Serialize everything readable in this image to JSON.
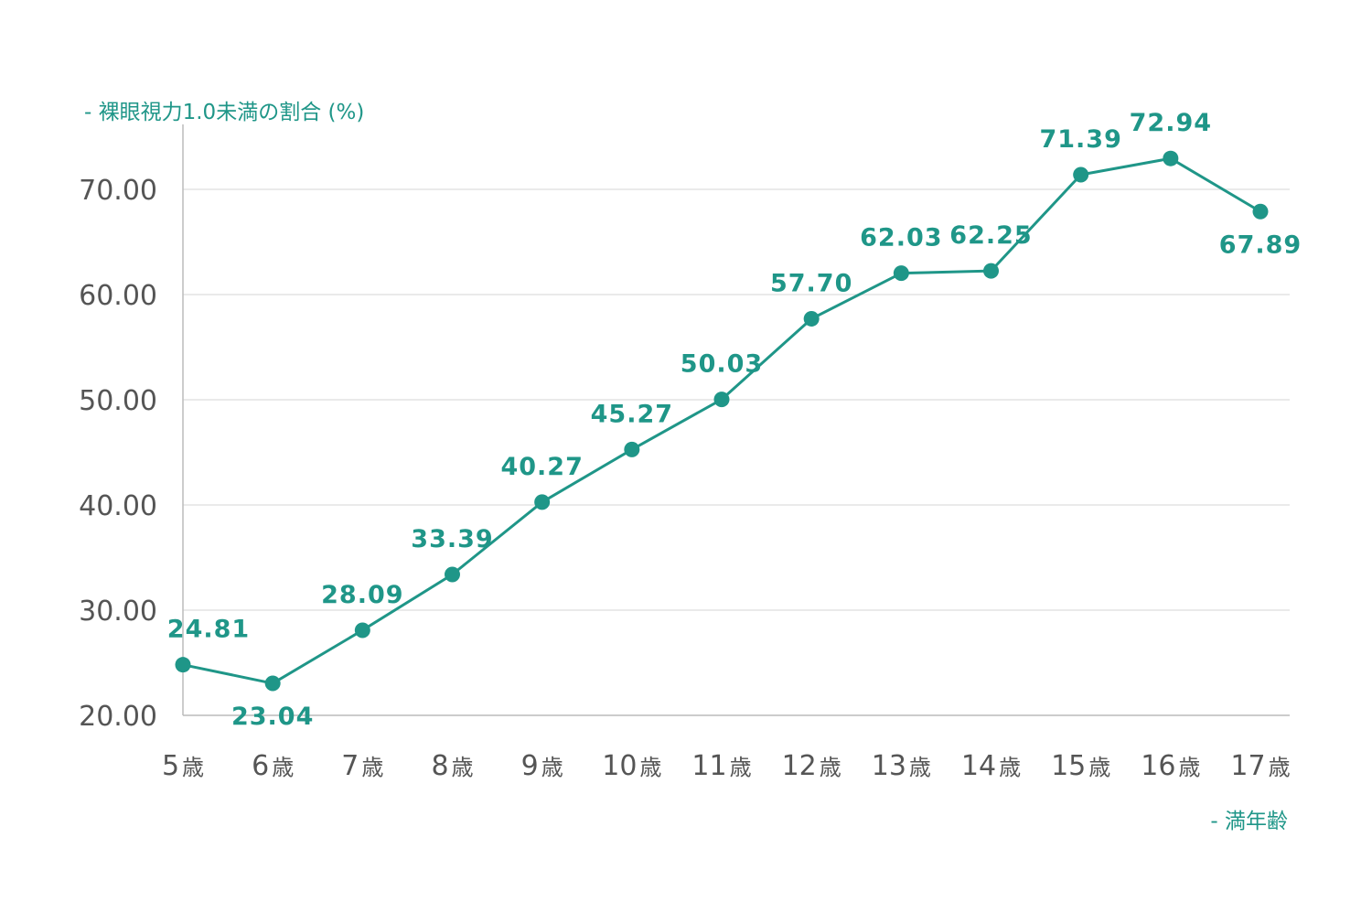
{
  "chart_data": {
    "type": "line",
    "title": "",
    "ylabel": "- 裸眼視力1.0未満の割合 (%)",
    "xlabel": "- 満年齢",
    "categories": [
      "5",
      "6",
      "7",
      "8",
      "9",
      "10",
      "11",
      "12",
      "13",
      "14",
      "15",
      "16",
      "17"
    ],
    "category_unit": "歳",
    "series": [
      {
        "name": "裸眼視力1.0未満の割合",
        "values": [
          24.81,
          23.04,
          28.09,
          33.39,
          40.27,
          45.27,
          50.03,
          57.7,
          62.03,
          62.25,
          71.39,
          72.94,
          67.89
        ],
        "labels": [
          "24.81",
          "23.04",
          "28.09",
          "33.39",
          "40.27",
          "45.27",
          "50.03",
          "57.70",
          "62.03",
          "62.25",
          "71.39",
          "72.94",
          "67.89"
        ],
        "label_position": [
          "above",
          "below",
          "above",
          "above",
          "above",
          "above",
          "above",
          "above",
          "above",
          "above",
          "above",
          "above",
          "below"
        ]
      }
    ],
    "ylim": [
      20,
      74
    ],
    "yticks": [
      20,
      30,
      40,
      50,
      60,
      70
    ],
    "ytick_labels": [
      "20.00",
      "30.00",
      "40.00",
      "50.00",
      "60.00",
      "70.00"
    ],
    "grid": true,
    "colors": {
      "line": "#1f9688",
      "grid": "#dddddd",
      "axis": "#bbbbbb",
      "tick_text": "#555555",
      "label_text": "#1f9688"
    }
  }
}
